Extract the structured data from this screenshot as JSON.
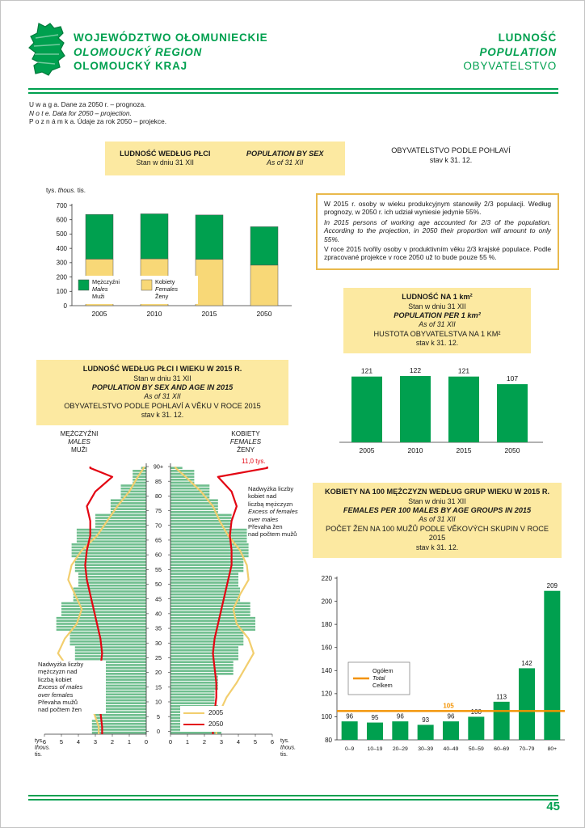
{
  "page": {
    "number": "45",
    "colors": {
      "green": "#00A04F",
      "banner_yellow": "#FCE9A1",
      "chart_yellow": "#F8D877",
      "line_2005": "#F2CE6E",
      "line_2050": "#E30613",
      "orange": "#F39200",
      "pyramid_bar": "#6FBE8E",
      "infobox_border": "#E9B94C"
    }
  },
  "header": {
    "left": [
      "WOJEWÓDZTWO OŁOMUNIECKIE",
      "OLOMOUCKÝ REGION",
      "OLOMOUCKÝ KRAJ"
    ],
    "right": [
      "LUDNOŚĆ",
      "POPULATION",
      "OBYVATELSTVO"
    ]
  },
  "notes": {
    "pl": "U w a g a. Dane za 2050 r. – prognoza.",
    "en": "N o t e. Data for 2050 – projection.",
    "cz": "P o z n á m k a. Údaje za rok 2050 – projekce."
  },
  "section_sex": {
    "pl_title": "LUDNOŚĆ WEDŁUG PŁCI",
    "pl_sub": "Stan w dniu 31 XII",
    "en_title": "POPULATION BY SEX",
    "en_sub": "As of 31 XII",
    "cz_title": "OBYVATELSTVO PODLE POHLAVÍ",
    "cz_sub": "stav k 31. 12."
  },
  "infobox": {
    "pl": "W 2015 r. osoby w wieku produkcyjnym stanowiły 2/3 populacji. Według prognozy, w 2050 r. ich udział wyniesie jedynie 55%.",
    "en": "In 2015 persons of working age accounted for 2/3 of the population. According to the projection, in 2050 their proportion will amount to only 55%.",
    "cz": "V roce 2015 tvořily osoby v produktivním věku 2/3 krajské populace. Podle zpracované projekce v roce 2050 už to bude pouze 55 %."
  },
  "section_density": {
    "pl_title": "LUDNOŚĆ NA 1 km²",
    "pl_sub": "Stan w dniu 31 XII",
    "en_title": "POPULATION PER 1 km²",
    "en_sub": "As of 31 XII",
    "cz_title": "HUSTOTA OBYVATELSTVA NA 1 KM²",
    "cz_sub": "stav k 31. 12."
  },
  "section_pyramid": {
    "pl_title": "LUDNOŚĆ WEDŁUG PŁCI I WIEKU W 2015 R.",
    "pl_sub": "Stan w dniu 31 XII",
    "en_title": "POPULATION BY SEX AND AGE IN 2015",
    "en_sub": "As of 31 XII",
    "cz_title": "OBYVATELSTVO PODLE POHLAVÍ A VĚKU V ROCE 2015",
    "cz_sub": "stav k 31. 12."
  },
  "pyramid_labels": {
    "males_header": [
      "MĘŻCZYŹNI",
      "MALES",
      "MUŽI"
    ],
    "females_header": [
      "KOBIETY",
      "FEMALES",
      "ŽENY"
    ],
    "excess_females": [
      "Nadwyżka liczby",
      "kobiet nad",
      "liczbą mężczyzn",
      "Excess of females",
      "over males",
      "Převaha žen",
      "nad počtem mužů"
    ],
    "excess_males": [
      "Nadwyżka liczby",
      "mężczyzn nad",
      "liczbą kobiet",
      "Excess of males",
      "over females",
      "Převaha mužů",
      "nad počtem žen"
    ],
    "legend": [
      {
        "label": "2005"
      },
      {
        "label": "2050"
      }
    ],
    "units": [
      "tys.",
      "thous.",
      "tis."
    ]
  },
  "section_ratio": {
    "pl_title": "KOBIETY NA 100 MĘŻCZYZN WEDŁUG GRUP WIEKU W 2015 R.",
    "pl_sub": "Stan w dniu 31 XII",
    "en_title": "FEMALES PER 100 MALES BY AGE GROUPS IN 2015",
    "en_sub": "As of 31 XII",
    "cz_title": "POČET ŽEN NA 100 MUŽŮ PODLE VĚKOVÝCH SKUPIN V ROCE 2015",
    "cz_sub": "stav k 31. 12."
  },
  "chart_data": [
    {
      "id": "population-by-sex",
      "type": "bar",
      "stacked": true,
      "title": "LUDNOŚĆ WEDŁUG PŁCI",
      "x": [
        "2005",
        "2010",
        "2015",
        "2050"
      ],
      "series": [
        {
          "name": [
            "Kobiety",
            "Females",
            "Ženy"
          ],
          "color": "#F8D877",
          "values": [
            325,
            327,
            323,
            283
          ]
        },
        {
          "name": [
            "Mężczyźni",
            "Males",
            "Muži"
          ],
          "color": "#00A04F",
          "values": [
            312,
            314,
            310,
            268
          ]
        }
      ],
      "unit_labels": [
        "tys.",
        "thous.",
        "tis."
      ],
      "ylim": [
        0,
        700
      ],
      "ytick_step": 100
    },
    {
      "id": "density",
      "type": "bar",
      "title": "LUDNOŚĆ NA 1 km²",
      "x": [
        "2005",
        "2010",
        "2015",
        "2050"
      ],
      "values": [
        121,
        122,
        121,
        107
      ],
      "bar_color": "#00A04F"
    },
    {
      "id": "pyramid-2015",
      "type": "population-pyramid",
      "title": "LUDNOŚĆ WEDŁUG PŁCI I WIEKU W 2015 R.",
      "unit": "tys.",
      "xlim": [
        0,
        6
      ],
      "age_bands": [
        "0",
        "5",
        "10",
        "15",
        "20",
        "25",
        "30",
        "35",
        "40",
        "45",
        "50",
        "55",
        "60",
        "65",
        "70",
        "75",
        "80",
        "85",
        "90+"
      ],
      "males_2015": [
        3.2,
        3.0,
        2.7,
        2.9,
        3.9,
        4.2,
        4.5,
        5.3,
        5.0,
        4.3,
        4.0,
        4.2,
        4.4,
        4.1,
        3.0,
        2.1,
        1.5,
        0.8,
        0.3
      ],
      "females_2015": [
        3.0,
        2.8,
        2.6,
        2.8,
        3.7,
        4.0,
        4.3,
        5.0,
        4.7,
        4.1,
        4.0,
        4.3,
        4.6,
        4.5,
        3.6,
        2.8,
        2.3,
        1.4,
        0.7
      ],
      "males_2005": [
        2.8,
        3.1,
        3.5,
        4.1,
        4.6,
        5.2,
        4.8,
        4.1,
        3.8,
        4.2,
        4.6,
        4.4,
        3.8,
        2.9,
        2.3,
        1.7,
        1.0,
        0.5,
        0.15
      ],
      "females_2005": [
        2.7,
        2.9,
        3.3,
        3.9,
        4.4,
        4.9,
        4.6,
        3.9,
        3.7,
        4.1,
        4.6,
        4.5,
        4.1,
        3.4,
        2.9,
        2.5,
        1.8,
        0.9,
        0.3
      ],
      "males_2050": [
        2.6,
        2.7,
        2.8,
        2.8,
        2.7,
        2.6,
        2.7,
        2.9,
        3.1,
        3.3,
        3.5,
        3.6,
        3.5,
        3.3,
        3.3,
        3.5,
        3.0,
        2.0,
        3.3
      ],
      "females_2050": [
        2.5,
        2.6,
        2.7,
        2.7,
        2.6,
        2.5,
        2.6,
        2.8,
        3.0,
        3.2,
        3.4,
        3.6,
        3.6,
        3.5,
        3.6,
        3.9,
        3.6,
        2.8,
        5.7
      ],
      "bar_color": "#6FBE8E",
      "line_2005_color": "#F2CE6E",
      "line_2050_color": "#E30613",
      "annotation_90plus_2050": "11,0 tys."
    },
    {
      "id": "females-per-100-males",
      "type": "bar",
      "title": "KOBIETY NA 100 MĘŻCZYZN WEDŁUG GRUP WIEKU W 2015 R.",
      "categories": [
        "0–9",
        "10–19",
        "20–29",
        "30–39",
        "40–49",
        "50–59",
        "60–69",
        "70–79",
        "80+"
      ],
      "values": [
        96,
        95,
        96,
        93,
        96,
        100,
        113,
        142,
        209
      ],
      "ylim": [
        80,
        220
      ],
      "ytick_step": 20,
      "bar_color": "#00A04F",
      "total_line": {
        "value": 105,
        "label": "105",
        "color": "#F39200",
        "legend": [
          "Ogółem",
          "Total",
          "Celkem"
        ]
      }
    }
  ]
}
